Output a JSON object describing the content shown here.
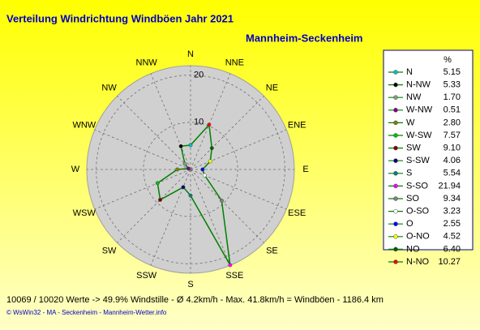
{
  "chart_data": {
    "type": "radar",
    "title": "Verteilung Windrichtung Windböen  Jahr 2021",
    "subtitle": "Mannheim-Seckenheim",
    "categories": [
      "N",
      "NNW",
      "NW",
      "WNW",
      "W",
      "WSW",
      "SW",
      "SSW",
      "S",
      "SSE",
      "SE",
      "ESE",
      "E",
      "ENE",
      "NE",
      "NNE"
    ],
    "legend_names": [
      "N",
      "N-NW",
      "NW",
      "W-NW",
      "W",
      "W-SW",
      "SW",
      "S-SW",
      "S",
      "S-SO",
      "SO",
      "O-SO",
      "O",
      "O-NO",
      "NO",
      "N-NO"
    ],
    "legend_header": "%",
    "values": [
      5.15,
      5.33,
      1.7,
      0.51,
      2.8,
      7.57,
      9.1,
      4.06,
      5.54,
      21.94,
      9.34,
      3.23,
      2.55,
      4.52,
      6.4,
      10.27
    ],
    "value_labels": [
      "5.15",
      "5.33",
      "1.70",
      "0.51",
      "2.80",
      "7.57",
      "9.10",
      "4.06",
      "5.54",
      "21.94",
      "9.34",
      "3.23",
      "2.55",
      "4.52",
      "6.40",
      "10.27"
    ],
    "point_colors": [
      "#00c0c0",
      "#000000",
      "#80a080",
      "#800080",
      "#808000",
      "#00c000",
      "#800000",
      "#000080",
      "#008080",
      "#ff00ff",
      "#808080",
      "#ffffff",
      "#0000ff",
      "#ffff00",
      "#006000",
      "#ff0000"
    ],
    "color": "#008000",
    "ylim": [
      0,
      22
    ],
    "yticks": [
      10,
      20
    ],
    "footer": "10069 / 10020 Werte  -> 49.9% Windstille   -   Ø 4.2km/h   -   Max. 41.8km/h = Windböen   -   1186.4 km",
    "credit": "© WsWin32  -  MA - Seckenheim  -  Mannheim-Wetter.info"
  }
}
